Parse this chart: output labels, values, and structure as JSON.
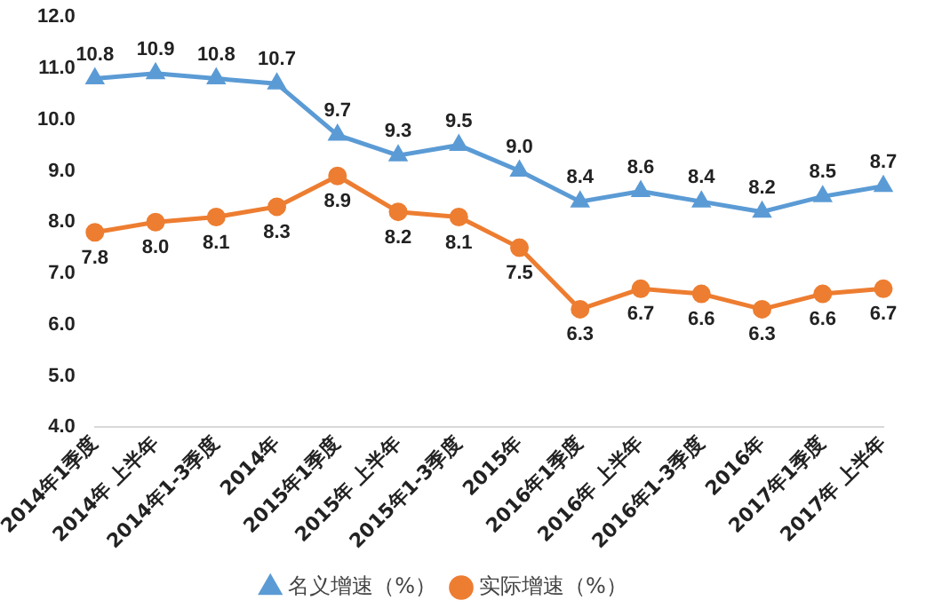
{
  "chart_data": {
    "type": "line",
    "categories": [
      "2014年1季度",
      "2014年 上半年",
      "2014年1-3季度",
      "2014年",
      "2015年1季度",
      "2015年 上半年",
      "2015年1-3季度",
      "2015年",
      "2016年1季度",
      "2016年 上半年",
      "2016年1-3季度",
      "2016年",
      "2017年1季度",
      "2017年 上半年"
    ],
    "series": [
      {
        "name": "名义增速（%）",
        "color": "#5b9bd5",
        "marker": "triangle",
        "values": [
          10.8,
          10.9,
          10.8,
          10.7,
          9.7,
          9.3,
          9.5,
          9.0,
          8.4,
          8.6,
          8.4,
          8.2,
          8.5,
          8.7
        ],
        "value_labels": [
          "10.8",
          "10.9",
          "10.8",
          "10.7",
          "9.7",
          "9.3",
          "9.5",
          "9.0",
          "8.4",
          "8.6",
          "8.4",
          "8.2",
          "8.5",
          "8.7"
        ]
      },
      {
        "name": "实际增速（%）",
        "color": "#ed7d31",
        "marker": "circle",
        "values": [
          7.8,
          8.0,
          8.1,
          8.3,
          8.9,
          8.2,
          8.1,
          7.5,
          6.3,
          6.7,
          6.6,
          6.3,
          6.6,
          6.7
        ],
        "value_labels": [
          "7.8",
          "8.0",
          "8.1",
          "8.3",
          "8.9",
          "8.2",
          "8.1",
          "7.5",
          "6.3",
          "6.7",
          "6.6",
          "6.3",
          "6.6",
          "6.7"
        ]
      }
    ],
    "ylim": [
      4,
      12
    ],
    "yticks": [
      {
        "value": 4,
        "label": "4.0"
      },
      {
        "value": 5,
        "label": "5.0"
      },
      {
        "value": 6,
        "label": "6.0"
      },
      {
        "value": 7,
        "label": "7.0"
      },
      {
        "value": 8,
        "label": "8.0"
      },
      {
        "value": 9,
        "label": "9.0"
      },
      {
        "value": 10,
        "label": "10.0"
      },
      {
        "value": 11,
        "label": "11.0"
      },
      {
        "value": 12,
        "label": "12.0"
      }
    ],
    "grid": false,
    "legend": "bottom"
  }
}
